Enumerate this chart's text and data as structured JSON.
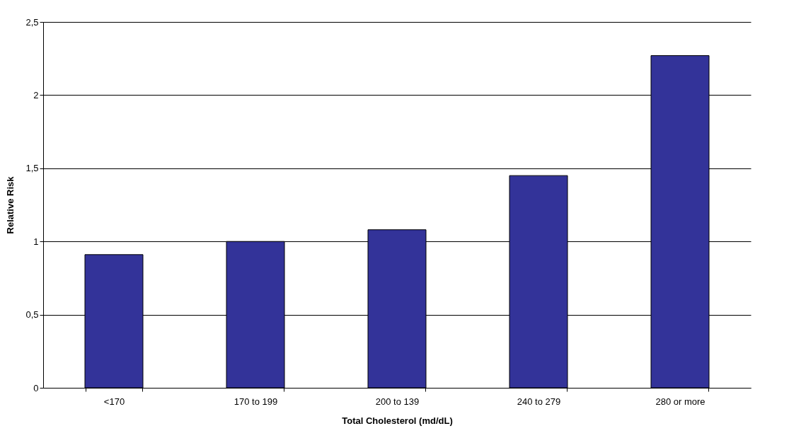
{
  "chart_data": {
    "type": "bar",
    "xlabel": "Total Cholesterol (md/dL)",
    "ylabel": "Relative Risk",
    "categories": [
      "<170",
      "170 to 199",
      "200 to 139",
      "240 to 279",
      "280 or more"
    ],
    "values": [
      0.91,
      1.0,
      1.08,
      1.45,
      2.27
    ],
    "color": "#333399",
    "ylim": [
      0,
      2.5
    ],
    "yticks": [
      0,
      {
        "value": 0.5,
        "label": "0,5"
      },
      1,
      {
        "value": 1.5,
        "label": "1,5"
      },
      2,
      {
        "value": 2.5,
        "label": "2,5"
      }
    ],
    "grid": "y"
  }
}
